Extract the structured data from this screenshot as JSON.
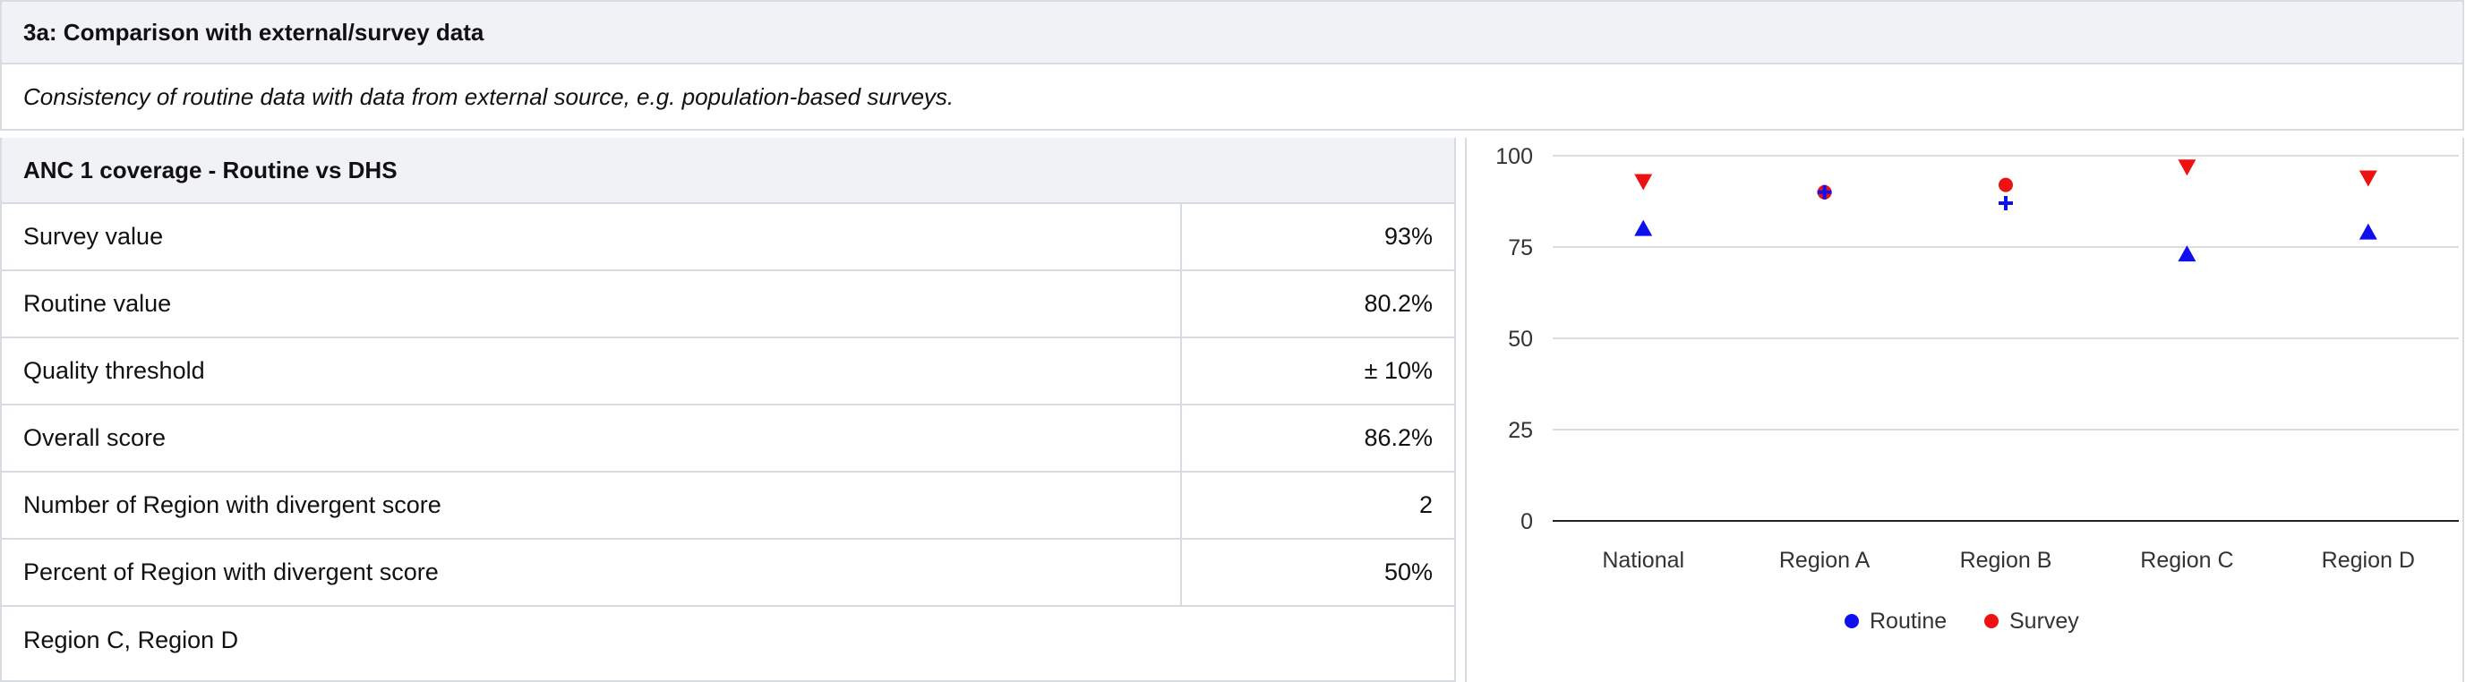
{
  "section": {
    "title": "3a: Comparison with external/survey data",
    "description": "Consistency of routine data with data from external source, e.g. population-based surveys."
  },
  "table": {
    "title": "ANC 1 coverage - Routine vs DHS",
    "rows": [
      {
        "label": "Survey value",
        "value": "93%"
      },
      {
        "label": "Routine value",
        "value": "80.2%"
      },
      {
        "label": "Quality threshold",
        "value": "± 10%"
      },
      {
        "label": "Overall score",
        "value": "86.2%"
      },
      {
        "label": "Number of Region with divergent score",
        "value": "2"
      },
      {
        "label": "Percent of Region with divergent score",
        "value": "50%"
      }
    ],
    "divergent_regions": "Region C, Region D"
  },
  "chart_data": {
    "type": "scatter",
    "categories": [
      "National",
      "Region A",
      "Region B",
      "Region C",
      "Region D"
    ],
    "ylim": [
      0,
      100
    ],
    "yticks": [
      0,
      25,
      50,
      75,
      100
    ],
    "grid": true,
    "legend_position": "bottom",
    "series": [
      {
        "name": "Routine",
        "color": "#1010ee",
        "values": [
          80,
          90,
          87,
          73,
          79
        ],
        "markers": [
          "triangle-up",
          "plus",
          "plus",
          "triangle-up",
          "triangle-up"
        ]
      },
      {
        "name": "Survey",
        "color": "#ee1111",
        "values": [
          93,
          90,
          92,
          97,
          94
        ],
        "markers": [
          "triangle-down",
          "circle",
          "circle",
          "triangle-down",
          "triangle-down"
        ]
      }
    ]
  }
}
